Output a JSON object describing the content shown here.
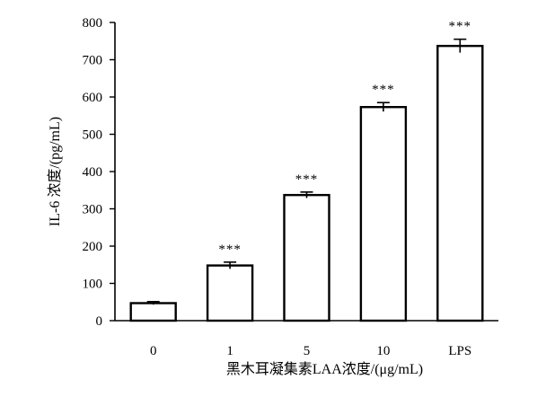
{
  "chart_data": {
    "type": "bar",
    "xlabel": "黑木耳凝集素LAA浓度/(μg/mL)",
    "ylabel": "IL-6 浓度/(pg/mL)",
    "ylim": [
      0,
      800
    ],
    "yticks": [
      "0",
      "100",
      "200",
      "300",
      "400",
      "500",
      "600",
      "700",
      "800"
    ],
    "categories": [
      "0",
      "1",
      "5",
      "10",
      "LPS"
    ],
    "values": [
      47,
      148,
      337,
      573,
      737
    ],
    "errors": [
      4,
      9,
      8,
      12,
      18
    ],
    "significance": [
      "",
      "***",
      "***",
      "***",
      "***"
    ],
    "grid": false,
    "legend": "none",
    "colors": {
      "bar_fill": "#ffffff",
      "bar_edge": "#000000",
      "axis": "#000000"
    }
  }
}
